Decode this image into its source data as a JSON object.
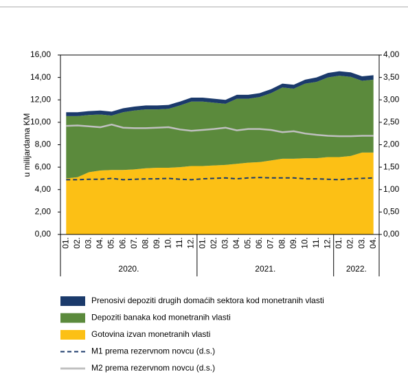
{
  "chart_data": {
    "type": "stacked_area_line",
    "y_axis_label": "u milijardama KM",
    "categories": [
      "01.",
      "02.",
      "03.",
      "04.",
      "05.",
      "06.",
      "07.",
      "08.",
      "09.",
      "10.",
      "11.",
      "12.",
      "01.",
      "02.",
      "03.",
      "04.",
      "05.",
      "06.",
      "07.",
      "08.",
      "09.",
      "10.",
      "11.",
      "12.",
      "01.",
      "02.",
      "03.",
      "04."
    ],
    "groups": [
      "2020.",
      "2021.",
      "2022."
    ],
    "series": [
      {
        "name": "Gotovina izvan monetranih vlasti",
        "color": "#fcc015",
        "values": [
          5.0,
          5.1,
          5.55,
          5.7,
          5.75,
          5.75,
          5.8,
          5.9,
          5.95,
          5.95,
          6.0,
          6.1,
          6.1,
          6.15,
          6.2,
          6.3,
          6.4,
          6.45,
          6.6,
          6.75,
          6.75,
          6.8,
          6.8,
          6.9,
          6.9,
          7.0,
          7.3,
          7.3
        ]
      },
      {
        "name": "Depoziti banaka kod monetranih vlasti",
        "color": "#5b8a3c",
        "values": [
          5.55,
          5.45,
          5.1,
          5.0,
          4.85,
          5.15,
          5.25,
          5.25,
          5.2,
          5.25,
          5.5,
          5.75,
          5.75,
          5.6,
          5.45,
          5.8,
          5.7,
          5.8,
          6.0,
          6.35,
          6.25,
          6.65,
          6.8,
          7.1,
          7.25,
          7.05,
          6.4,
          6.5
        ]
      },
      {
        "name": "Prenosivi depoziti drugih domaćih sektora kod monetranih vlasti",
        "color": "#1b3a6b",
        "values": [
          0.35,
          0.35,
          0.35,
          0.35,
          0.35,
          0.35,
          0.35,
          0.35,
          0.35,
          0.35,
          0.35,
          0.35,
          0.35,
          0.35,
          0.35,
          0.35,
          0.35,
          0.35,
          0.35,
          0.35,
          0.35,
          0.35,
          0.4,
          0.4,
          0.4,
          0.4,
          0.4,
          0.4
        ]
      },
      {
        "name": "M1 prema rezervnom novcu (d.s.)",
        "color": "#1b3a6b",
        "axis": "y2",
        "style": "dashed",
        "values": [
          1.22,
          1.22,
          1.23,
          1.23,
          1.25,
          1.22,
          1.23,
          1.24,
          1.24,
          1.25,
          1.23,
          1.22,
          1.24,
          1.25,
          1.26,
          1.24,
          1.26,
          1.27,
          1.26,
          1.26,
          1.26,
          1.24,
          1.24,
          1.23,
          1.22,
          1.24,
          1.25,
          1.26
        ]
      },
      {
        "name": "M2 prema rezervnom novcu (d.s.)",
        "color": "#c0c0c0",
        "axis": "y2",
        "style": "solid",
        "values": [
          2.42,
          2.43,
          2.41,
          2.39,
          2.45,
          2.38,
          2.37,
          2.37,
          2.38,
          2.39,
          2.34,
          2.31,
          2.33,
          2.35,
          2.38,
          2.32,
          2.35,
          2.35,
          2.33,
          2.28,
          2.3,
          2.25,
          2.22,
          2.2,
          2.19,
          2.19,
          2.2,
          2.2
        ]
      }
    ],
    "legend_order": [
      2,
      1,
      0,
      3,
      4
    ],
    "ylim": [
      0,
      16
    ],
    "yticks": [
      {
        "value": 0,
        "label": "0,00"
      },
      {
        "value": 2,
        "label": "2,00"
      },
      {
        "value": 4,
        "label": "4,00"
      },
      {
        "value": 6,
        "label": "6,00"
      },
      {
        "value": 8,
        "label": "8,00"
      },
      {
        "value": 10,
        "label": "10,00"
      },
      {
        "value": 12,
        "label": "12,00"
      },
      {
        "value": 14,
        "label": "14,00"
      },
      {
        "value": 16,
        "label": "16,00"
      }
    ],
    "y2lim": [
      0,
      4
    ],
    "y2ticks": [
      {
        "value": 0,
        "label": "0,00"
      },
      {
        "value": 0.5,
        "label": "0,50"
      },
      {
        "value": 1,
        "label": "1,00"
      },
      {
        "value": 1.5,
        "label": "1,50"
      },
      {
        "value": 2,
        "label": "2,00"
      },
      {
        "value": 2.5,
        "label": "2,50"
      },
      {
        "value": 3,
        "label": "3,00"
      },
      {
        "value": 3.5,
        "label": "3,50"
      },
      {
        "value": 4,
        "label": "4,00"
      }
    ]
  }
}
